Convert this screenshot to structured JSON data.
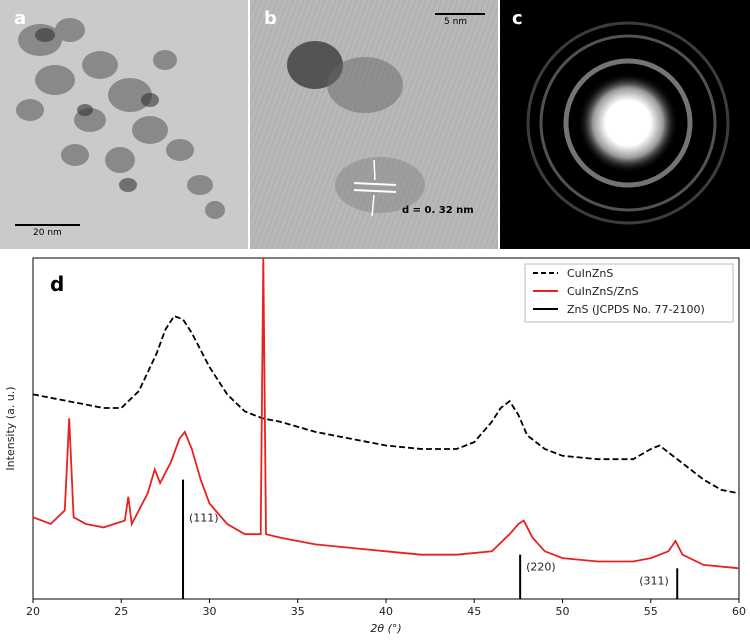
{
  "panels": {
    "a": {
      "label": "a",
      "scale_bar": "20 nm"
    },
    "b": {
      "label": "b",
      "scale_bar": "5 nm",
      "annotation": "d = 0. 32 nm"
    },
    "c": {
      "label": "c"
    },
    "d": {
      "label": "d"
    }
  },
  "chart_data": {
    "type": "line",
    "xlabel": "2θ (°)",
    "ylabel": "Intensity (a. u.)",
    "xlim": [
      20,
      60
    ],
    "xticks": [
      20,
      25,
      30,
      35,
      40,
      45,
      50,
      55,
      60
    ],
    "legend_position": "top-right",
    "series": [
      {
        "name": "CuInZnS",
        "color": "#000000",
        "style": "dashed",
        "x": [
          20,
          22,
          24,
          25,
          26,
          27,
          27.5,
          28,
          28.5,
          29,
          29.5,
          30,
          31,
          32,
          33,
          34,
          36,
          38,
          40,
          42,
          44,
          45,
          46,
          46.5,
          47,
          47.5,
          48,
          49,
          50,
          52,
          54,
          55,
          55.5,
          56,
          57,
          58,
          59,
          60
        ],
        "y": [
          0.6,
          0.58,
          0.56,
          0.56,
          0.61,
          0.72,
          0.79,
          0.83,
          0.82,
          0.78,
          0.73,
          0.68,
          0.6,
          0.55,
          0.53,
          0.52,
          0.49,
          0.47,
          0.45,
          0.44,
          0.44,
          0.46,
          0.52,
          0.56,
          0.58,
          0.54,
          0.48,
          0.44,
          0.42,
          0.41,
          0.41,
          0.44,
          0.45,
          0.43,
          0.39,
          0.35,
          0.32,
          0.31
        ]
      },
      {
        "name": "CuInZnS/ZnS",
        "color": "#e8221e",
        "style": "solid",
        "x": [
          20,
          21,
          21.8,
          22.05,
          22.3,
          23,
          24,
          25.2,
          25.4,
          25.6,
          26.5,
          26.9,
          27.2,
          27.8,
          28.3,
          28.6,
          29,
          29.5,
          30,
          31,
          32,
          32.9,
          33.05,
          33.2,
          34,
          36,
          38,
          40,
          42,
          44,
          46,
          47,
          47.5,
          47.8,
          48.3,
          49,
          50,
          52,
          54,
          55,
          56,
          56.4,
          56.8,
          58,
          60
        ],
        "y": [
          0.24,
          0.22,
          0.26,
          0.53,
          0.24,
          0.22,
          0.21,
          0.23,
          0.3,
          0.22,
          0.31,
          0.38,
          0.34,
          0.4,
          0.47,
          0.49,
          0.44,
          0.35,
          0.28,
          0.22,
          0.19,
          0.19,
          1.0,
          0.19,
          0.18,
          0.16,
          0.15,
          0.14,
          0.13,
          0.13,
          0.14,
          0.19,
          0.22,
          0.23,
          0.18,
          0.14,
          0.12,
          0.11,
          0.11,
          0.12,
          0.14,
          0.17,
          0.13,
          0.1,
          0.09
        ]
      },
      {
        "name": "ZnS (JCPDS No. 77-2100)",
        "color": "#000000",
        "style": "sticks",
        "x": [
          28.5,
          47.6,
          56.5
        ],
        "y": [
          0.35,
          0.13,
          0.09
        ],
        "labels": [
          "(111)",
          "(220)",
          "(311)"
        ]
      }
    ]
  }
}
